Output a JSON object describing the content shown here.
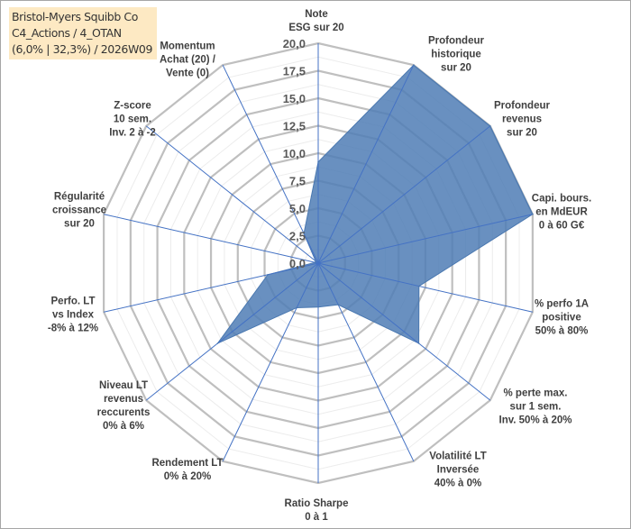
{
  "title": {
    "line1": "Bristol-Myers Squibb Co",
    "line2": "C4_Actions / 4_OTAN",
    "line3": "(6,0% | 32,3%) / 2026W09"
  },
  "chart_data": {
    "type": "radar",
    "title": "Bristol-Myers Squibb Co",
    "rlim": [
      0,
      20
    ],
    "ticks": [
      "0,0",
      "2,5",
      "5,0",
      "7,5",
      "10,0",
      "12,5",
      "15,0",
      "17,5",
      "20,0"
    ],
    "tick_values": [
      0,
      2.5,
      5,
      7.5,
      10,
      12.5,
      15,
      17.5,
      20
    ],
    "categories": [
      "Note\nESG sur 20",
      "Profondeur\nhistorique\nsur 20",
      "Profondeur\nrevenus\nsur 20",
      "Capi. bours.\nen MdEUR\n0 à 60 G€",
      "% perfo 1A\npositive\n50% à 80%",
      "% perte max.\nsur 1 sem.\nInv. 50% à 20%",
      "Volatilité LT\nInversée\n40% à 0%",
      "Ratio Sharpe\n0 à 1",
      "Rendement LT\n0% à 20%",
      "Niveau LT\nrevenus\nreccurents\n0% à 6%",
      "Perfo. LT\nvs Index\n-8% à 12%",
      "Régularité\ncroissance\nsur 20",
      "Z-score\n10 sem.\nInv. 2 à -2",
      "Momentum\nAchat (20) /\nVente (0)"
    ],
    "series": [
      {
        "name": "Bristol-Myers Squibb Co",
        "values": [
          9.2,
          20,
          20,
          20,
          9.4,
          11.7,
          4.2,
          4.0,
          4.5,
          11.7,
          4.7,
          0.3,
          0.3,
          3.0
        ],
        "color": "#4f7db5"
      }
    ],
    "grid": true
  }
}
